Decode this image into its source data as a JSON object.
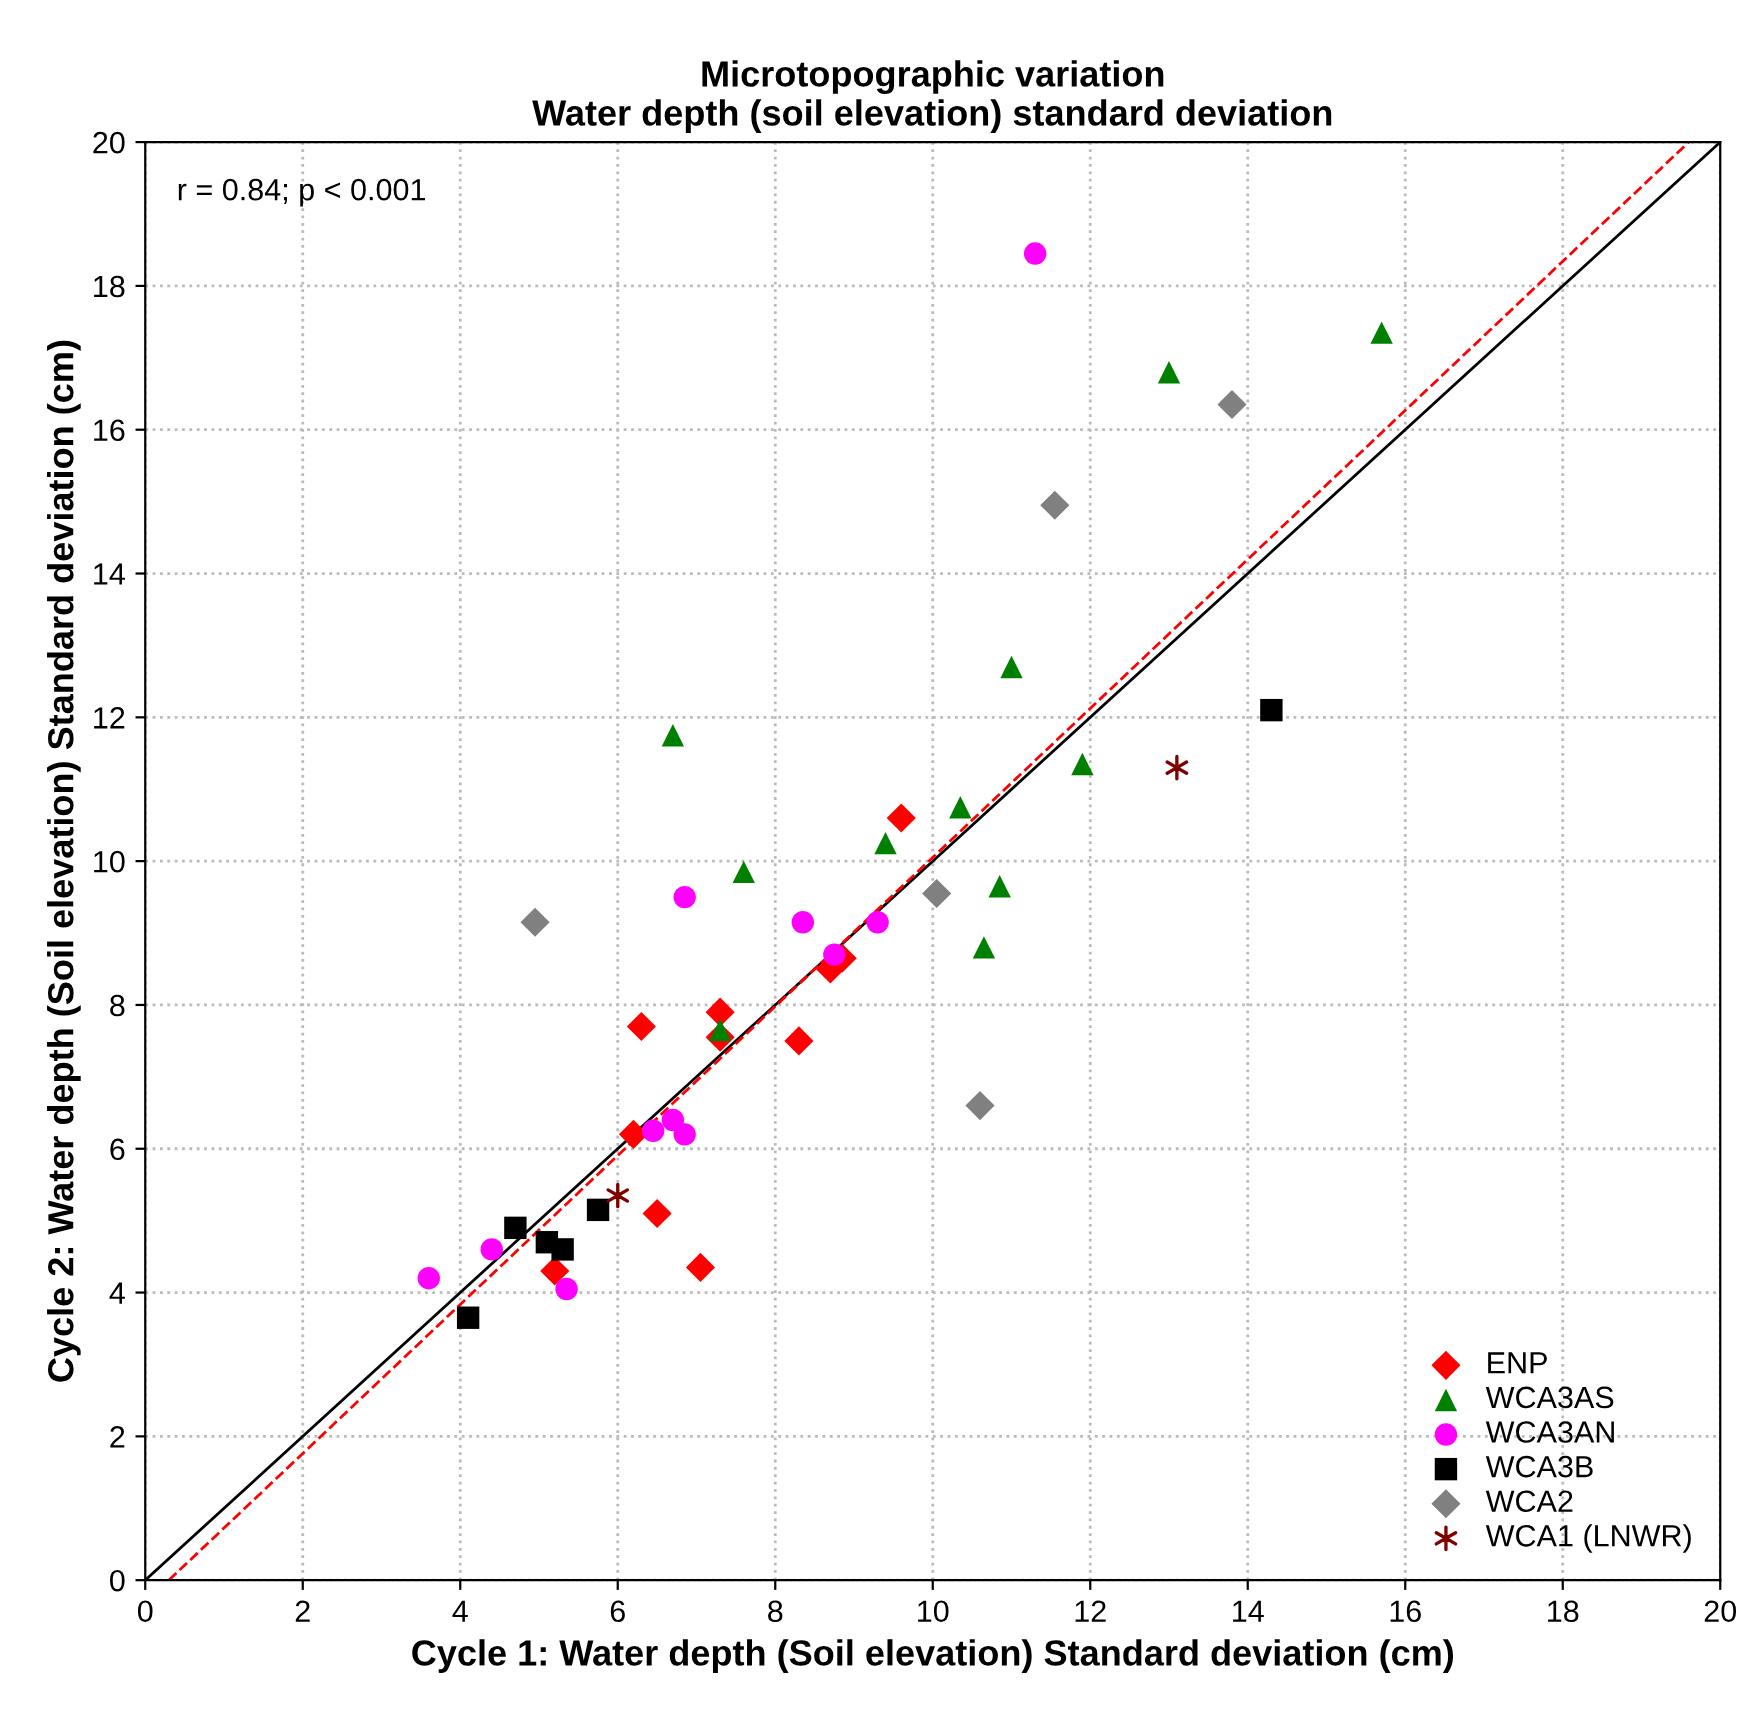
{
  "chart_data": {
    "type": "scatter",
    "title": "Microtopographic variation\nWater depth (soil elevation) standard deviation",
    "xlabel": "Cycle 1: Water depth (Soil elevation) Standard deviation (cm)",
    "ylabel": "Cycle 2: Water depth (Soil elevation) Standard deviation (cm)",
    "xlim": [
      0,
      20
    ],
    "ylim": [
      0,
      20
    ],
    "xticks": [
      0,
      2,
      4,
      6,
      8,
      10,
      12,
      14,
      16,
      18,
      20
    ],
    "yticks": [
      0,
      2,
      4,
      6,
      8,
      10,
      12,
      14,
      16,
      18,
      20
    ],
    "grid": true,
    "legend": "bottom right",
    "annotations": [
      "r = 0.84; p < 0.001"
    ],
    "series": [
      {
        "name": "ENP",
        "color": "#ff0000",
        "marker": "diamond",
        "x": [
          6.3,
          7.3,
          7.3,
          8.3,
          9.6,
          8.7,
          8.85,
          6.2,
          6.5,
          7.05,
          5.2
        ],
        "values": [
          7.7,
          7.9,
          7.55,
          7.5,
          10.6,
          8.5,
          8.65,
          6.2,
          5.1,
          4.35,
          4.3
        ]
      },
      {
        "name": "WCA3AS",
        "color": "#008000",
        "marker": "triangle",
        "x": [
          6.7,
          7.6,
          7.3,
          9.4,
          10.35,
          11.0,
          11.9,
          10.85,
          10.65,
          13.0,
          15.7
        ],
        "values": [
          11.75,
          9.85,
          7.65,
          10.25,
          10.75,
          12.7,
          11.35,
          9.65,
          8.8,
          16.8,
          17.35
        ]
      },
      {
        "name": "WCA3AN",
        "color": "#ff00ff",
        "marker": "circle",
        "x": [
          11.3,
          6.85,
          8.35,
          9.3,
          8.75,
          3.6,
          4.4,
          5.35,
          6.45,
          6.7,
          6.85
        ],
        "values": [
          18.45,
          9.5,
          9.15,
          9.15,
          8.7,
          4.2,
          4.6,
          4.05,
          6.25,
          6.4,
          6.2
        ]
      },
      {
        "name": "WCA3B",
        "color": "#000000",
        "marker": "square",
        "x": [
          4.1,
          4.7,
          5.1,
          5.3,
          5.75,
          14.3
        ],
        "values": [
          3.65,
          4.9,
          4.7,
          4.6,
          5.15,
          12.1
        ]
      },
      {
        "name": "WCA2",
        "color": "#808080",
        "marker": "diamond",
        "x": [
          4.95,
          10.05,
          11.55,
          13.8,
          10.6
        ],
        "values": [
          9.15,
          9.55,
          14.95,
          16.35,
          6.6
        ]
      },
      {
        "name": "WCA1 (LNWR)",
        "color": "#800000",
        "marker": "cross",
        "x": [
          6.0,
          13.1
        ],
        "values": [
          5.35,
          11.3
        ]
      },
      {
        "type": "line",
        "color": "#000000",
        "line_style": "solid",
        "marker": "none",
        "x": [
          0,
          20
        ],
        "values": [
          0,
          20
        ]
      },
      {
        "type": "line",
        "color": "#ff0000",
        "line_style": "dashed",
        "marker": "none",
        "x": [
          0.3,
          19.6
        ],
        "values": [
          0,
          20
        ]
      }
    ]
  }
}
